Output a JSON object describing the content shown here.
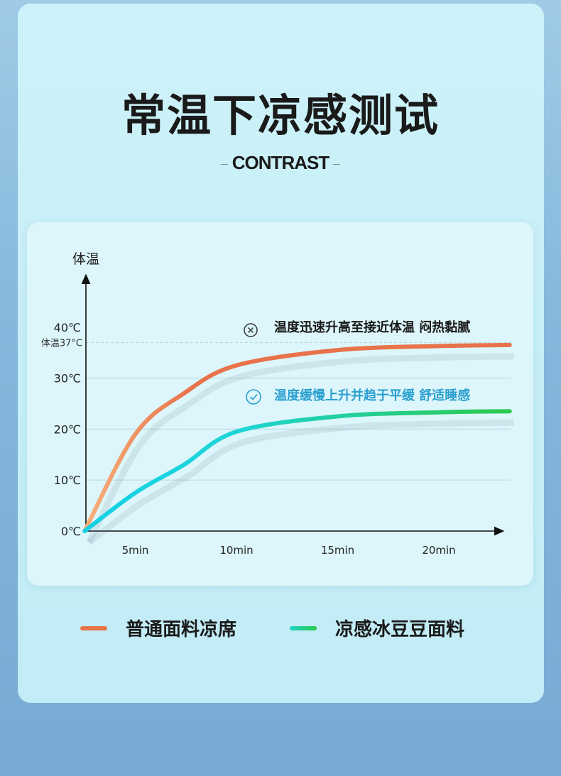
{
  "title": "常温下凉感测试",
  "subtitle": "CONTRAST",
  "chart_data": {
    "type": "line",
    "ylabel": "体温",
    "yticks": [
      "0℃",
      "10℃",
      "20℃",
      "30℃",
      "40℃"
    ],
    "ytick_values": [
      0,
      10,
      20,
      30,
      40
    ],
    "reference_line": {
      "label": "体温37°C",
      "value": 37
    },
    "xticks": [
      "5min",
      "10min",
      "15min",
      "20min"
    ],
    "xtick_values": [
      5,
      10,
      15,
      20
    ],
    "grid": true,
    "series": [
      {
        "name": "普通面料凉席",
        "color": "#e8734a",
        "x": [
          2.5,
          5,
          7.4,
          10,
          15,
          20,
          23.5
        ],
        "y": [
          0,
          19,
          27,
          32.5,
          35.5,
          36.3,
          36.5
        ]
      },
      {
        "name": "凉感冰豆豆面料",
        "color": "#2fd06a",
        "x": [
          2.5,
          5,
          7.4,
          10,
          15,
          20,
          23.5
        ],
        "y": [
          0,
          7.5,
          13,
          19.5,
          22.5,
          23.3,
          23.5
        ]
      }
    ],
    "annotations": [
      {
        "icon": "x-circle-icon",
        "text": "温度迅速升高至接近体温 闷热黏腻",
        "color": "#1a1a1a"
      },
      {
        "icon": "check-circle-icon",
        "text": "温度缓慢上升并趋于平缓 舒适睡感",
        "color": "#2a9fd0"
      }
    ]
  }
}
